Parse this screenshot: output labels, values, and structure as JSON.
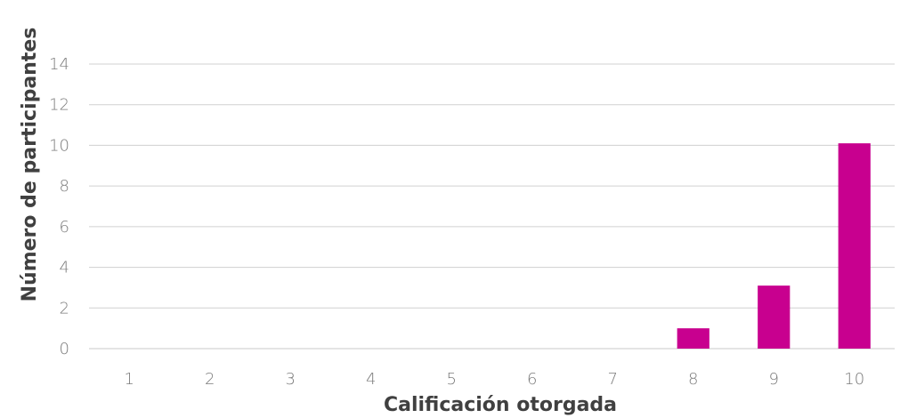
{
  "chart_data": {
    "type": "bar",
    "title": "",
    "xlabel": "Calificación otorgada",
    "ylabel": "Número de participantes",
    "categories": [
      "1",
      "2",
      "3",
      "4",
      "5",
      "6",
      "7",
      "8",
      "9",
      "10"
    ],
    "values": [
      0,
      0,
      0,
      0,
      0,
      0,
      0,
      1,
      3.1,
      10.1
    ],
    "ylim": [
      0,
      14
    ],
    "yticks": [
      "0",
      "2",
      "4",
      "6",
      "8",
      "10",
      "12",
      "14"
    ],
    "grid": true,
    "legend": "none",
    "bar_color": "#c8008f"
  }
}
